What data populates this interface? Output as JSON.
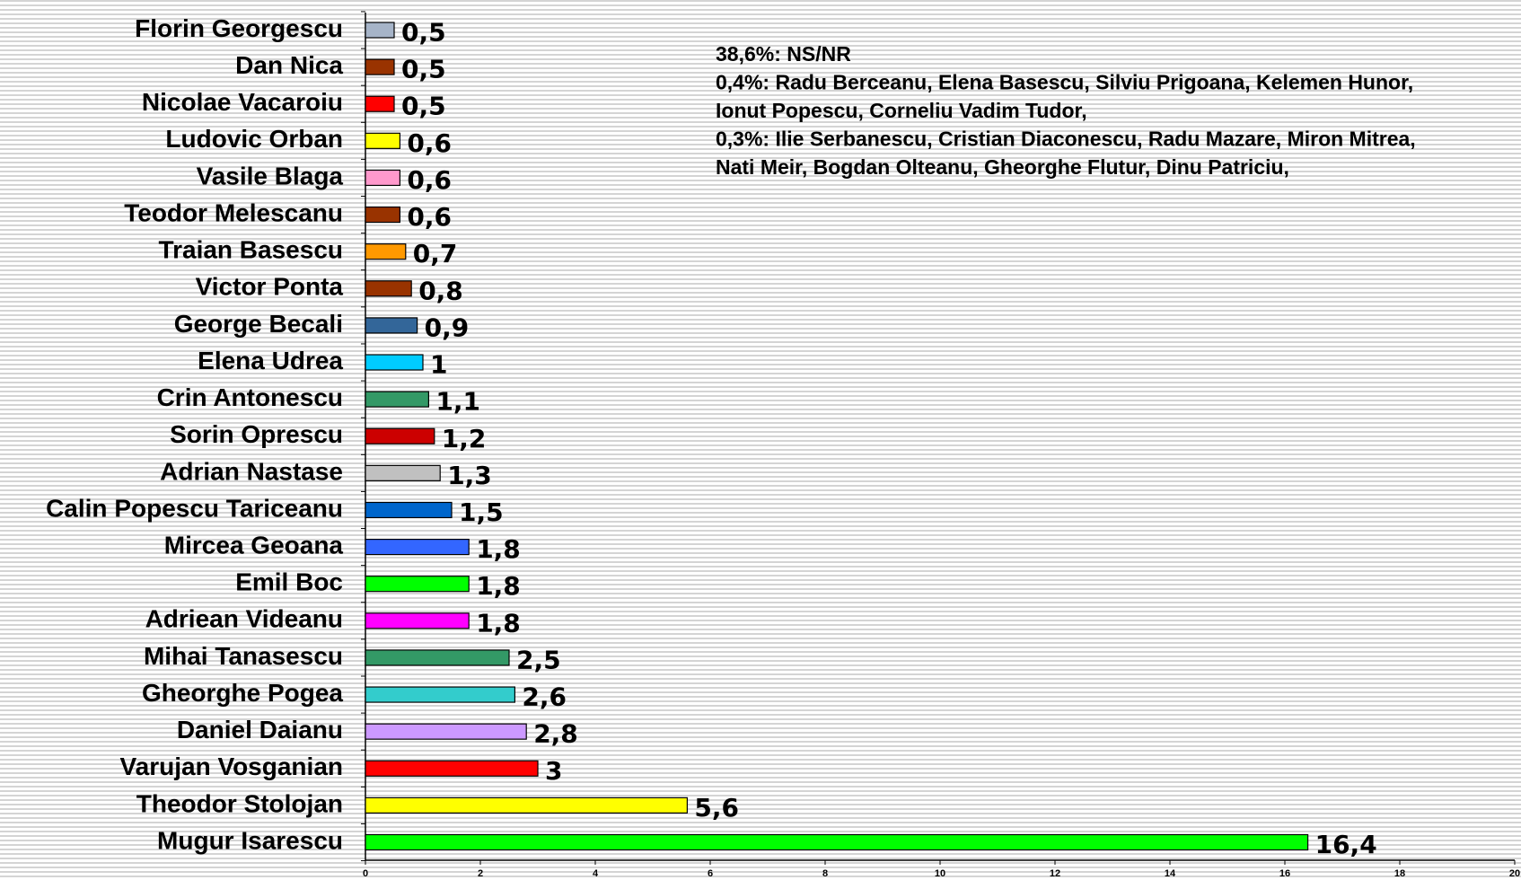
{
  "chart_data": {
    "type": "barh",
    "categories": [
      "Florin Georgescu",
      "Dan Nica",
      "Nicolae Vacaroiu",
      "Ludovic Orban",
      "Vasile Blaga",
      "Teodor Melescanu",
      "Traian Basescu",
      "Victor Ponta",
      "George Becali",
      "Elena Udrea",
      "Crin Antonescu",
      "Sorin Oprescu",
      "Adrian Nastase",
      "Calin Popescu Tariceanu",
      "Mircea Geoana",
      "Emil Boc",
      "Adriean Videanu",
      "Mihai Tanasescu",
      "Gheorghe Pogea",
      "Daniel Daianu",
      "Varujan Vosganian",
      "Theodor Stolojan",
      "Mugur Isarescu"
    ],
    "values": [
      0.5,
      0.5,
      0.5,
      0.6,
      0.6,
      0.6,
      0.7,
      0.8,
      0.9,
      1,
      1.1,
      1.2,
      1.3,
      1.5,
      1.8,
      1.8,
      1.8,
      2.5,
      2.6,
      2.8,
      3,
      5.6,
      16.4
    ],
    "value_labels": [
      "0,5",
      "0,5",
      "0,5",
      "0,6",
      "0,6",
      "0,6",
      "0,7",
      "0,8",
      "0,9",
      "1",
      "1,1",
      "1,2",
      "1,3",
      "1,5",
      "1,8",
      "1,8",
      "1,8",
      "2,5",
      "2,6",
      "2,8",
      "3",
      "5,6",
      "16,4"
    ],
    "colors": [
      "#a6b4c8",
      "#993300",
      "#ff0000",
      "#ffff00",
      "#ff99cc",
      "#993300",
      "#ff9900",
      "#993300",
      "#336699",
      "#00ccff",
      "#339966",
      "#cc0000",
      "#c0c0c0",
      "#0066cc",
      "#3366ff",
      "#00ff00",
      "#ff00ff",
      "#339966",
      "#33cccc",
      "#cc99ff",
      "#ff0000",
      "#ffff00",
      "#00ff00"
    ],
    "xlim": [
      0,
      20
    ],
    "xticks": [
      0,
      2,
      4,
      6,
      8,
      10,
      12,
      14,
      16,
      18,
      20
    ],
    "annotations": [
      "38,6%: NS/NR",
      "0,4%: Radu Berceanu, Elena Basescu, Silviu Prigoana, Kelemen Hunor,",
      "Ionut Popescu, Corneliu Vadim Tudor,",
      "0,3%: Ilie Serbanescu, Cristian Diaconescu, Radu Mazare, Miron Mitrea,",
      "Nati Meir, Bogdan Olteanu, Gheorghe Flutur, Dinu Patriciu,"
    ]
  }
}
